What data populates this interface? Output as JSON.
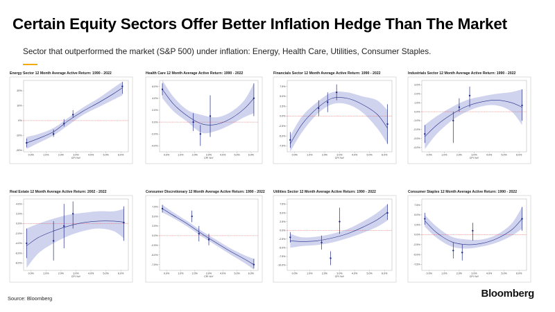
{
  "header": {
    "title": "Certain Equity Sectors Offer Better Inflation Hedge Than The Market",
    "subtitle": "Sector that outperformed the market (S&P 500) under inflation: Energy, Health Care, Utilities, Consumer Staples."
  },
  "footer": {
    "source": "Source: Bloomberg",
    "brand": "Bloomberg"
  },
  "colors": {
    "band": "#c8cbeb",
    "curve": "#1f2a87",
    "points": "#1f2a87",
    "baseline": "#d9534f",
    "frame": "#999999"
  },
  "chart_data": [
    {
      "type": "scatter",
      "title": "Energy Sector 12 Month Average Active Return: 1990 - 2022",
      "xlabel": "CPI YoY",
      "xticks": [
        "0.0%",
        "1.0%",
        "2.0%",
        "3.0%",
        "4.0%",
        "5.0%",
        "6.0%"
      ],
      "xlim": [
        -0.5,
        6.5
      ],
      "yticks": [
        -20,
        -10,
        0,
        10,
        20
      ],
      "ytick_labels": [
        "-20%",
        "-10%",
        "0%",
        "10%",
        "20%"
      ],
      "ylim": [
        -21,
        27
      ],
      "points": [
        {
          "x": -0.3,
          "y": -15,
          "lo": -18,
          "hi": -12
        },
        {
          "x": 1.5,
          "y": -9,
          "lo": -11,
          "hi": -6
        },
        {
          "x": 2.2,
          "y": -2,
          "lo": -4,
          "hi": 1
        },
        {
          "x": 2.8,
          "y": 4,
          "lo": 2,
          "hi": 7
        },
        {
          "x": 6.1,
          "y": 23,
          "lo": 18,
          "hi": 26
        }
      ],
      "curve": {
        "x": [
          -0.3,
          0.5,
          1.5,
          2.5,
          3.5,
          4.5,
          5.5,
          6.1
        ],
        "y": [
          -15,
          -12,
          -7.5,
          0,
          6.5,
          12,
          18,
          22
        ],
        "lower": [
          -19,
          -15,
          -10,
          -3,
          4,
          9,
          14,
          17
        ],
        "upper": [
          -11,
          -9,
          -5,
          2,
          9,
          15,
          22,
          26
        ]
      }
    },
    {
      "type": "scatter",
      "title": "Health Care 12 Month Average Active Return: 1990 - 2022",
      "xlabel": "CPI YoY",
      "xticks": [
        "0.0%",
        "1.0%",
        "2.0%",
        "3.0%",
        "4.0%",
        "5.0%",
        "6.0%"
      ],
      "xlim": [
        -0.5,
        6.5
      ],
      "yticks": [
        -4,
        -2,
        0,
        2,
        4,
        6
      ],
      "ytick_labels": [
        "-4.0%",
        "-2.0%",
        "0.0%",
        "2.0%",
        "4.0%",
        "6.0%"
      ],
      "ylim": [
        -5,
        7
      ],
      "points": [
        {
          "x": -0.3,
          "y": 5.5,
          "lo": 4.5,
          "hi": 6.5
        },
        {
          "x": 1.9,
          "y": 0,
          "lo": -1.5,
          "hi": 1.5
        },
        {
          "x": 2.4,
          "y": -2,
          "lo": -4,
          "hi": -0.5
        },
        {
          "x": 3.1,
          "y": 1,
          "lo": -2.5,
          "hi": 4.5
        },
        {
          "x": 6.2,
          "y": 4,
          "lo": 1,
          "hi": 6.5
        }
      ],
      "curve": {
        "x": [
          -0.3,
          0.5,
          1.5,
          2.5,
          3.5,
          4.5,
          5.5,
          6.2
        ],
        "y": [
          5.5,
          3,
          1,
          -0.3,
          -0.4,
          0.5,
          2.2,
          4
        ],
        "lower": [
          4,
          1.8,
          0,
          -1.8,
          -1.5,
          -0.5,
          0.8,
          1.5
        ],
        "upper": [
          7,
          4.2,
          2,
          1.2,
          0.8,
          1.6,
          3.6,
          6.5
        ]
      }
    },
    {
      "type": "scatter",
      "title": "Financials Sector 12 Month Average Active Return: 1990 - 2022",
      "xlabel": "CPI YoY",
      "xticks": [
        "0.0%",
        "1.0%",
        "2.0%",
        "3.0%",
        "4.0%",
        "5.0%",
        "6.0%"
      ],
      "xlim": [
        -0.5,
        6.5
      ],
      "yticks": [
        -7.5,
        -5,
        -2.5,
        0,
        2.5,
        5,
        7.5
      ],
      "ytick_labels": [
        "-7.5%",
        "-5.0%",
        "-2.5%",
        "0.0%",
        "2.5%",
        "5.0%",
        "7.5%"
      ],
      "ylim": [
        -9,
        9
      ],
      "points": [
        {
          "x": -0.3,
          "y": -6,
          "lo": -8,
          "hi": -4
        },
        {
          "x": 1.6,
          "y": 2,
          "lo": 0,
          "hi": 4
        },
        {
          "x": 2.2,
          "y": 3.5,
          "lo": 1,
          "hi": 6
        },
        {
          "x": 2.8,
          "y": 6,
          "lo": 4,
          "hi": 8
        },
        {
          "x": 6.2,
          "y": -2,
          "lo": -7,
          "hi": 3
        }
      ],
      "curve": {
        "x": [
          -0.3,
          0.5,
          1.5,
          2.5,
          3.5,
          4.5,
          5.5,
          6.2
        ],
        "y": [
          -7,
          -2,
          2,
          4.5,
          4.5,
          3,
          0.5,
          -3
        ],
        "lower": [
          -9,
          -4,
          0.5,
          3,
          3,
          1,
          -3,
          -7
        ],
        "upper": [
          -5,
          0,
          3.5,
          6,
          6,
          5,
          4,
          1.5
        ]
      }
    },
    {
      "type": "scatter",
      "title": "Industrials Sector 12 Month Average Active Return: 1990 - 2022",
      "xlabel": "CPI YoY",
      "xticks": [
        "0.0%",
        "1.0%",
        "2.0%",
        "3.0%",
        "4.0%",
        "5.0%",
        "6.0%"
      ],
      "xlim": [
        -0.5,
        6.5
      ],
      "yticks": [
        -4,
        -3,
        -2,
        -1,
        0,
        1,
        2,
        3
      ],
      "ytick_labels": [
        "-4.0%",
        "-3.0%",
        "-2.0%",
        "-1.0%",
        "0.0%",
        "1.0%",
        "2.0%",
        "3.0%"
      ],
      "ylim": [
        -4.5,
        3.5
      ],
      "points": [
        {
          "x": -0.3,
          "y": -2.5,
          "lo": -3.5,
          "hi": -1.5
        },
        {
          "x": 1.6,
          "y": -1,
          "lo": -3.5,
          "hi": 0
        },
        {
          "x": 2.0,
          "y": 0.5,
          "lo": 0,
          "hi": 1.5
        },
        {
          "x": 2.7,
          "y": 1.8,
          "lo": 0.5,
          "hi": 2.8
        },
        {
          "x": 6.2,
          "y": 0.7,
          "lo": -1,
          "hi": 2.5
        }
      ],
      "curve": {
        "x": [
          -0.3,
          0.5,
          1.5,
          2.5,
          3.5,
          4.5,
          5.5,
          6.2
        ],
        "y": [
          -2.8,
          -1.5,
          -0.3,
          0.6,
          1.1,
          1.3,
          1.0,
          0.5
        ],
        "lower": [
          -4.2,
          -2.5,
          -1,
          0,
          0.6,
          0.7,
          0,
          -1.5
        ],
        "upper": [
          -1.5,
          -0.5,
          0.5,
          1.3,
          1.7,
          2,
          2.2,
          2.5
        ]
      }
    },
    {
      "type": "scatter",
      "title": "Real Estate 12 Month Average Active Return: 2002 - 2022",
      "xlabel": "CPI YoY",
      "xticks": [
        "0.0%",
        "1.0%",
        "2.0%",
        "3.0%",
        "4.0%",
        "5.0%",
        "6.0%"
      ],
      "xlim": [
        -0.5,
        6.5
      ],
      "yticks": [
        -8,
        -6,
        -4,
        -2,
        0,
        2,
        4
      ],
      "ytick_labels": [
        "-8.0%",
        "-6.0%",
        "-4.0%",
        "-2.0%",
        "0.0%",
        "2.0%",
        "4.0%"
      ],
      "ylim": [
        -9.5,
        5
      ],
      "points": [
        {
          "x": -0.3,
          "y": -4,
          "lo": -7,
          "hi": -1
        },
        {
          "x": 1.5,
          "y": -3.5,
          "lo": -7.5,
          "hi": 0.5
        },
        {
          "x": 2.2,
          "y": -0.5,
          "lo": -5,
          "hi": 4
        },
        {
          "x": 2.8,
          "y": 2,
          "lo": -1,
          "hi": 4.5
        },
        {
          "x": 6.2,
          "y": 0.2,
          "lo": -3.5,
          "hi": 3.5
        }
      ],
      "curve": {
        "x": [
          -0.3,
          0.5,
          1.5,
          2.5,
          3.5,
          4.5,
          5.5,
          6.2
        ],
        "y": [
          -4.5,
          -2.8,
          -1.5,
          -0.5,
          0.2,
          0.5,
          0.5,
          0.3
        ],
        "lower": [
          -9,
          -6,
          -4,
          -2.5,
          -1.5,
          -1,
          -1.5,
          -3
        ],
        "upper": [
          -1,
          0,
          1,
          1.8,
          2.2,
          2.5,
          2.5,
          3
        ]
      }
    },
    {
      "type": "scatter",
      "title": "Consumer Discretionary 12 Month Average Active Return: 1990 - 2022",
      "xlabel": "CPI YoY",
      "xticks": [
        "0.0%",
        "1.0%",
        "2.0%",
        "3.0%",
        "4.0%",
        "5.0%",
        "6.0%"
      ],
      "xlim": [
        -0.5,
        6.5
      ],
      "yticks": [
        -7.5,
        -5,
        -2.5,
        0,
        2.5,
        5,
        7.5
      ],
      "ytick_labels": [
        "-7.5%",
        "-5.0%",
        "-2.5%",
        "0.0%",
        "2.5%",
        "5.0%",
        "7.5%"
      ],
      "ylim": [
        -9,
        9.5
      ],
      "points": [
        {
          "x": -0.3,
          "y": 7,
          "lo": 6,
          "hi": 8
        },
        {
          "x": 1.8,
          "y": 5,
          "lo": 3.5,
          "hi": 6.5
        },
        {
          "x": 2.3,
          "y": 0.5,
          "lo": -1.5,
          "hi": 2.5
        },
        {
          "x": 3.0,
          "y": -1,
          "lo": -2.5,
          "hi": 0.5
        },
        {
          "x": 6.2,
          "y": -7.5,
          "lo": -8.5,
          "hi": -6
        }
      ],
      "curve": {
        "x": [
          -0.3,
          0.5,
          1.5,
          2.5,
          3.5,
          4.5,
          5.5,
          6.2
        ],
        "y": [
          7,
          5.2,
          3,
          0.5,
          -1.8,
          -4,
          -6,
          -7.5
        ],
        "lower": [
          6,
          4.5,
          2.3,
          -0.2,
          -2.5,
          -4.8,
          -7,
          -8.8
        ],
        "upper": [
          8,
          6,
          3.7,
          1.2,
          -1,
          -3.2,
          -5,
          -6
        ]
      }
    },
    {
      "type": "scatter",
      "title": "Utilities Sector 12 Month Average Active Return: 1990 - 2022",
      "xlabel": "CPI YoY",
      "xticks": [
        "0.0%",
        "1.0%",
        "2.0%",
        "3.0%",
        "4.0%",
        "5.0%",
        "6.0%"
      ],
      "xlim": [
        -0.5,
        6.5
      ],
      "yticks": [
        -10,
        -7.5,
        -5,
        -2.5,
        0,
        2.5,
        5,
        7.5
      ],
      "ytick_labels": [
        "-10.0%",
        "-7.5%",
        "-5.0%",
        "-2.5%",
        "0.0%",
        "2.5%",
        "5.0%",
        "7.5%"
      ],
      "ylim": [
        -11.5,
        9
      ],
      "points": [
        {
          "x": -0.3,
          "y": -2,
          "lo": -3.5,
          "hi": -0.5
        },
        {
          "x": 1.8,
          "y": -3.5,
          "lo": -5.5,
          "hi": -1.5
        },
        {
          "x": 2.4,
          "y": -8,
          "lo": -10,
          "hi": -6
        },
        {
          "x": 3.0,
          "y": 2.5,
          "lo": -1,
          "hi": 6.5
        },
        {
          "x": 6.2,
          "y": 5,
          "lo": 3,
          "hi": 7.5
        }
      ],
      "curve": {
        "x": [
          -0.3,
          0.5,
          1.5,
          2.5,
          3.5,
          4.5,
          5.5,
          6.2
        ],
        "y": [
          -3,
          -3.2,
          -3,
          -2.2,
          -1,
          0.8,
          3,
          5.2
        ],
        "lower": [
          -5,
          -4.5,
          -4.2,
          -3.5,
          -2.3,
          -0.8,
          1,
          2.8
        ],
        "upper": [
          -1,
          -2,
          -1.8,
          -1,
          0.3,
          2.4,
          5,
          7.5
        ]
      }
    },
    {
      "type": "scatter",
      "title": "Consumer Staples 12 Month Average Active Return: 1990 - 2022",
      "xlabel": "CPI YoY",
      "xticks": [
        "0.0%",
        "1.0%",
        "2.0%",
        "3.0%",
        "4.0%",
        "5.0%",
        "6.0%"
      ],
      "xlim": [
        -0.5,
        6.5
      ],
      "yticks": [
        -7.5,
        -5,
        -2.5,
        0,
        2.5,
        5,
        7.5
      ],
      "ytick_labels": [
        "-7.5%",
        "-5.0%",
        "-2.5%",
        "0.0%",
        "2.5%",
        "5.0%",
        "7.5%"
      ],
      "ylim": [
        -9,
        9
      ],
      "points": [
        {
          "x": -0.3,
          "y": 4,
          "lo": 2.5,
          "hi": 5.5
        },
        {
          "x": 1.6,
          "y": -4,
          "lo": -6,
          "hi": -2
        },
        {
          "x": 2.2,
          "y": -4.5,
          "lo": -6.5,
          "hi": -2.5
        },
        {
          "x": 2.9,
          "y": 1,
          "lo": -1.5,
          "hi": 3
        },
        {
          "x": 6.2,
          "y": 4,
          "lo": 1,
          "hi": 7
        }
      ],
      "curve": {
        "x": [
          -0.3,
          0.5,
          1.5,
          2.5,
          3.5,
          4.5,
          5.5,
          6.2
        ],
        "y": [
          3.5,
          0.5,
          -1.8,
          -2.5,
          -2.2,
          -1,
          1.2,
          4
        ],
        "lower": [
          2,
          -0.8,
          -3,
          -3.5,
          -3,
          -2,
          -0.3,
          1.5
        ],
        "upper": [
          5,
          2,
          -0.5,
          -1.2,
          -1.2,
          0,
          2.8,
          7
        ]
      }
    }
  ]
}
